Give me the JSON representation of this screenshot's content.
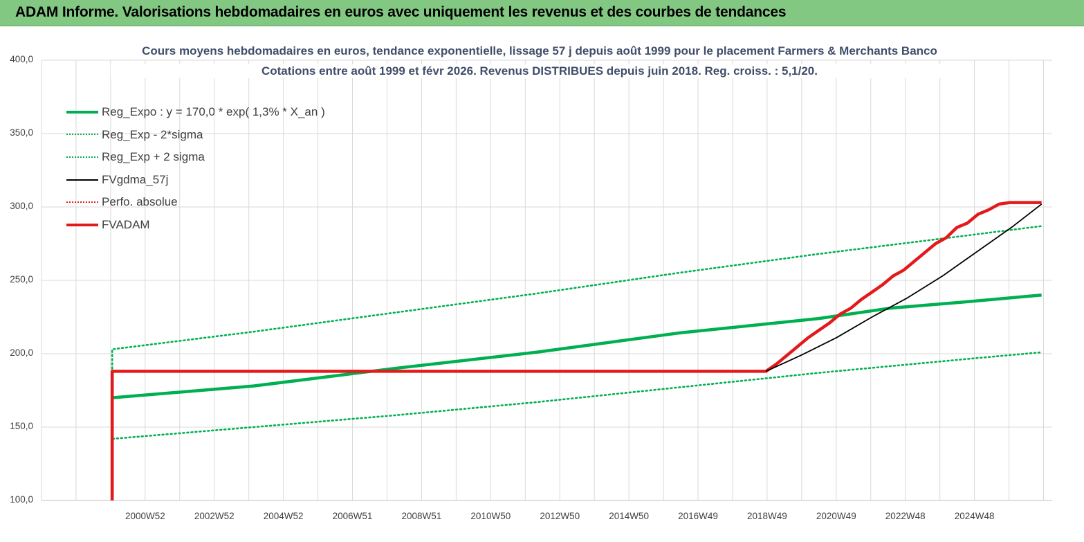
{
  "header": {
    "title": "ADAM Informe. Valorisations hebdomadaires en euros avec uniquement les revenus et des courbes de tendances"
  },
  "colors": {
    "banner": "#82c882",
    "trend": "#00b050",
    "perf": "#e31a1c",
    "gdma": "#000000",
    "title": "#404e6a"
  },
  "chart_data": {
    "type": "line",
    "title": "Cours moyens hebdomadaires en euros, tendance exponentielle, lissage 57 j depuis août 1999 pour le placement Farmers & Merchants Banco",
    "subtitle": "Cotations entre août 1999 et févr 2026. Revenus DISTRIBUES depuis juin 2018. Reg. croiss. : 5,1/20.",
    "xlabel": "",
    "ylabel": "",
    "ylim": [
      100,
      400
    ],
    "yticks": [
      "400,0",
      "350,0",
      "300,0",
      "250,0",
      "200,0",
      "150,0",
      "100,0"
    ],
    "xlim": [
      1998,
      2026.6
    ],
    "xtick_labels": [
      "2000W52",
      "2002W52",
      "2004W52",
      "2006W51",
      "2008W51",
      "2010W50",
      "2012W50",
      "2014W50",
      "2016W49",
      "2018W49",
      "2020W49",
      "2022W48",
      "2024W48"
    ],
    "grid": true,
    "legend_position": "top-left",
    "series": [
      {
        "name": "Reg_Expo : y = 170,0 * exp( 1,3% *  X_an )",
        "style": "solid-thick",
        "color": "#00b050",
        "x": [
          2000.0,
          2004.0,
          2008.0,
          2012.0,
          2016.0,
          2020.0,
          2022.0,
          2024.0,
          2026.3
        ],
        "values": [
          170,
          178,
          190,
          201,
          214,
          224,
          231,
          235,
          240
        ]
      },
      {
        "name": "Reg_Exp - 2*sigma",
        "style": "dotted",
        "color": "#00b050",
        "x": [
          2000.0,
          2004.0,
          2008.0,
          2012.0,
          2016.0,
          2020.0,
          2024.0,
          2026.3
        ],
        "values": [
          142,
          150,
          158,
          167,
          177,
          187,
          196,
          201
        ]
      },
      {
        "name": "Reg_Exp + 2 sigma",
        "style": "dotted",
        "color": "#00b050",
        "x": [
          2000.0,
          2004.0,
          2008.0,
          2012.0,
          2016.0,
          2020.0,
          2024.0,
          2026.3
        ],
        "values": [
          203,
          215,
          228,
          241,
          255,
          268,
          280,
          287
        ]
      },
      {
        "name": "FVgdma_57j",
        "style": "solid",
        "color": "#000000",
        "x": [
          2018.5,
          2019.5,
          2020.5,
          2021.5,
          2022.5,
          2023.5,
          2024.5,
          2025.5,
          2026.3
        ],
        "values": [
          188,
          199,
          211,
          225,
          238,
          253,
          270,
          287,
          302
        ]
      },
      {
        "name": "Perfo. absolue",
        "style": "dotted",
        "color": "#e31a1c",
        "x": [],
        "values": []
      },
      {
        "name": "FVADAM",
        "style": "solid-thick",
        "color": "#e31a1c",
        "x": [
          2000.0,
          2000.0,
          2018.5,
          2018.8,
          2019.1,
          2019.4,
          2019.7,
          2020.0,
          2020.3,
          2020.6,
          2020.9,
          2021.2,
          2021.5,
          2021.8,
          2022.1,
          2022.4,
          2022.7,
          2023.0,
          2023.3,
          2023.6,
          2023.9,
          2024.2,
          2024.5,
          2024.8,
          2025.1,
          2025.4,
          2025.7,
          2026.0,
          2026.3
        ],
        "values": [
          100,
          188,
          188,
          193,
          199,
          205,
          211,
          216,
          221,
          227,
          231,
          237,
          242,
          247,
          253,
          257,
          263,
          269,
          275,
          279,
          286,
          289,
          295,
          298,
          302,
          303,
          303,
          303,
          303
        ]
      }
    ]
  }
}
